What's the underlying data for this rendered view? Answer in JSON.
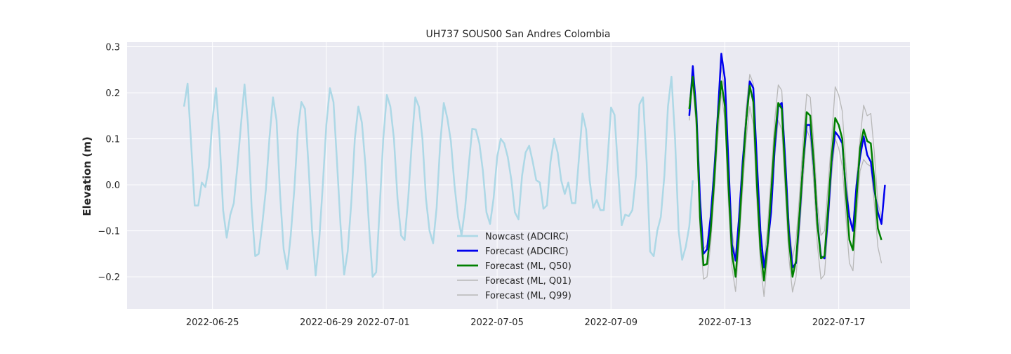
{
  "chart_data": {
    "type": "line",
    "title": "UH737 SOUS00 San Andres Colombia",
    "xlabel": "",
    "ylabel": "Elevation (m)",
    "x_start": "2022-06-23",
    "x_end": "2022-07-19",
    "xlim": [
      "2022-06-22T00:00",
      "2022-07-19T12:00"
    ],
    "ylim": [
      -0.27,
      0.31
    ],
    "x_ticks": [
      "2022-06-25",
      "2022-06-29",
      "2022-07-01",
      "2022-07-05",
      "2022-07-09",
      "2022-07-13",
      "2022-07-17"
    ],
    "y_ticks": [
      "0.3",
      "0.2",
      "0.1",
      "0.0",
      "−0.1",
      "−0.2"
    ],
    "y_tick_values": [
      0.3,
      0.2,
      0.1,
      0.0,
      -0.1,
      -0.2
    ],
    "grid": true,
    "background": "#eaeaf2",
    "legend_position": "lower-center",
    "series": [
      {
        "name": "Nowcast (ADCIRC)",
        "color": "#add8e6",
        "width": 2.5,
        "start": "2022-06-24T00:00",
        "step_hours": 3,
        "values": [
          0.17,
          0.22,
          0.09,
          -0.045,
          -0.045,
          0.005,
          -0.005,
          0.04,
          0.14,
          0.21,
          0.1,
          -0.055,
          -0.115,
          -0.065,
          -0.04,
          0.04,
          0.13,
          0.218,
          0.13,
          -0.05,
          -0.155,
          -0.15,
          -0.085,
          -0.01,
          0.1,
          0.19,
          0.14,
          -0.02,
          -0.14,
          -0.183,
          -0.11,
          -0.01,
          0.12,
          0.18,
          0.165,
          0.04,
          -0.1,
          -0.197,
          -0.12,
          0.0,
          0.13,
          0.21,
          0.18,
          0.05,
          -0.09,
          -0.195,
          -0.145,
          -0.04,
          0.1,
          0.17,
          0.135,
          0.04,
          -0.09,
          -0.2,
          -0.19,
          -0.05,
          0.1,
          0.195,
          0.17,
          0.1,
          -0.03,
          -0.11,
          -0.12,
          -0.03,
          0.09,
          0.19,
          0.17,
          0.1,
          -0.03,
          -0.1,
          -0.127,
          -0.05,
          0.09,
          0.178,
          0.145,
          0.095,
          0.0,
          -0.07,
          -0.11,
          -0.05,
          0.04,
          0.122,
          0.12,
          0.09,
          0.03,
          -0.06,
          -0.085,
          -0.03,
          0.06,
          0.1,
          0.09,
          0.06,
          0.01,
          -0.06,
          -0.075,
          0.02,
          0.07,
          0.085,
          0.05,
          0.01,
          0.005,
          -0.052,
          -0.045,
          0.05,
          0.1,
          0.07,
          0.01,
          -0.02,
          0.005,
          -0.04,
          -0.04,
          0.06,
          0.155,
          0.12,
          0.01,
          -0.05,
          -0.033,
          -0.055,
          -0.055,
          0.05,
          0.168,
          0.152,
          0.03,
          -0.088,
          -0.065,
          -0.068,
          -0.055,
          0.02,
          0.175,
          0.19,
          0.05,
          -0.145,
          -0.155,
          -0.1,
          -0.07,
          0.02,
          0.17,
          0.235,
          0.1,
          -0.1,
          -0.163,
          -0.135,
          -0.09,
          0.01
        ]
      },
      {
        "name": "Forecast (ADCIRC)",
        "color": "#0000ee",
        "width": 2.5,
        "start": "2022-07-11T18:00",
        "step_hours": 3,
        "values": [
          0.15,
          0.258,
          0.16,
          -0.03,
          -0.15,
          -0.14,
          -0.07,
          0.03,
          0.15,
          0.285,
          0.23,
          0.05,
          -0.13,
          -0.165,
          -0.07,
          0.05,
          0.14,
          0.225,
          0.21,
          0.05,
          -0.1,
          -0.18,
          -0.13,
          -0.06,
          0.08,
          0.17,
          0.178,
          0.05,
          -0.1,
          -0.18,
          -0.17,
          -0.07,
          0.05,
          0.13,
          0.13,
          0.04,
          -0.08,
          -0.155,
          -0.16,
          -0.07,
          0.05,
          0.115,
          0.105,
          0.09,
          -0.01,
          -0.07,
          -0.1,
          0.0,
          0.06,
          0.105,
          0.065,
          0.05,
          -0.01,
          -0.06,
          -0.085,
          0.0
        ]
      },
      {
        "name": "Forecast (ML, Q50)",
        "color": "#008000",
        "width": 2.5,
        "start": "2022-07-11T18:00",
        "step_hours": 3,
        "values": [
          0.165,
          0.235,
          0.145,
          -0.07,
          -0.175,
          -0.172,
          -0.1,
          0.01,
          0.14,
          0.225,
          0.17,
          0.0,
          -0.15,
          -0.2,
          -0.1,
          0.03,
          0.14,
          0.215,
          0.18,
          0.0,
          -0.14,
          -0.208,
          -0.13,
          -0.02,
          0.1,
          0.178,
          0.165,
          0.02,
          -0.12,
          -0.2,
          -0.165,
          -0.06,
          0.05,
          0.158,
          0.15,
          0.045,
          -0.085,
          -0.16,
          -0.155,
          -0.05,
          0.06,
          0.145,
          0.13,
          0.1,
          -0.02,
          -0.12,
          -0.142,
          -0.03,
          0.08,
          0.12,
          0.095,
          0.09,
          0.01,
          -0.095,
          -0.12
        ]
      },
      {
        "name": "Forecast (ML, Q01)",
        "color": "#b8b8b8",
        "width": 1.3,
        "start": "2022-07-11T18:00",
        "step_hours": 3,
        "values": [
          0.14,
          0.22,
          0.12,
          -0.1,
          -0.205,
          -0.2,
          -0.13,
          -0.02,
          0.1,
          0.2,
          0.14,
          -0.04,
          -0.18,
          -0.232,
          -0.13,
          -0.01,
          0.1,
          0.17,
          0.13,
          -0.04,
          -0.17,
          -0.243,
          -0.16,
          -0.06,
          0.06,
          0.14,
          0.12,
          -0.02,
          -0.16,
          -0.233,
          -0.2,
          -0.1,
          0.01,
          0.12,
          0.1,
          0.0,
          -0.13,
          -0.205,
          -0.195,
          -0.09,
          0.02,
          0.1,
          0.08,
          0.04,
          -0.07,
          -0.17,
          -0.187,
          -0.07,
          0.03,
          0.055,
          0.045,
          0.04,
          -0.04,
          -0.135,
          -0.17
        ]
      },
      {
        "name": "Forecast (ML, Q99)",
        "color": "#b8b8b8",
        "width": 1.3,
        "start": "2022-07-11T18:00",
        "step_hours": 3,
        "values": [
          0.18,
          0.25,
          0.16,
          -0.04,
          -0.14,
          -0.13,
          -0.06,
          0.04,
          0.17,
          0.255,
          0.2,
          0.04,
          -0.1,
          -0.16,
          -0.06,
          0.06,
          0.17,
          0.24,
          0.22,
          0.04,
          -0.1,
          -0.17,
          -0.09,
          0.02,
          0.14,
          0.217,
          0.205,
          0.06,
          -0.08,
          -0.16,
          -0.12,
          -0.02,
          0.1,
          0.197,
          0.19,
          0.09,
          -0.04,
          -0.11,
          -0.1,
          0.0,
          0.1,
          0.213,
          0.195,
          0.16,
          0.04,
          -0.07,
          -0.09,
          0.01,
          0.1,
          0.173,
          0.15,
          0.155,
          0.07,
          -0.04,
          -0.07
        ]
      }
    ]
  }
}
